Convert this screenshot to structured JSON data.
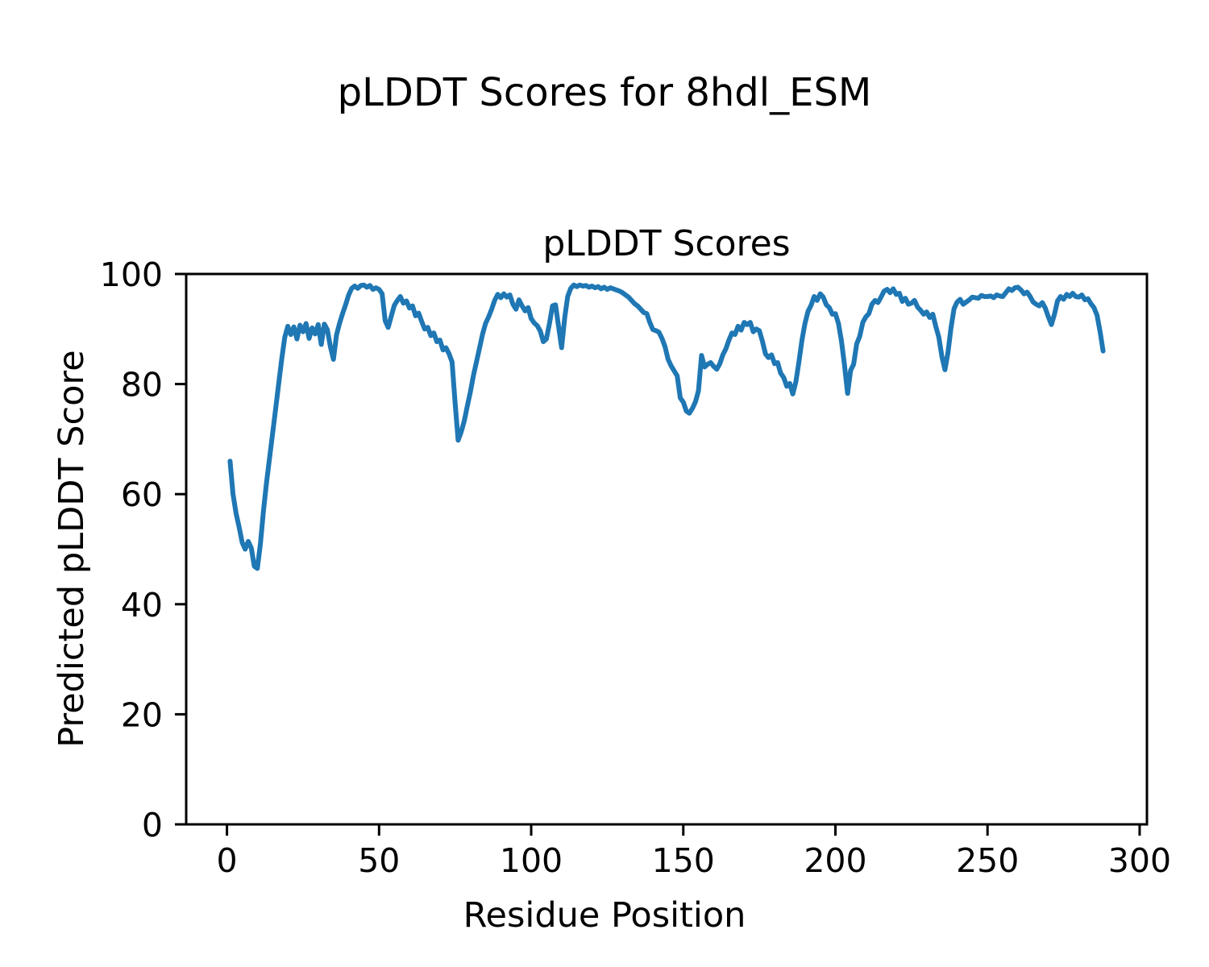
{
  "suptitle": "pLDDT Scores for 8hdl_ESM",
  "chart_data": {
    "type": "line",
    "title": "pLDDT Scores",
    "xlabel": "Residue Position",
    "ylabel": "Predicted pLDDT Score",
    "legend": "none",
    "grid": false,
    "line_color": "#1f77b4",
    "axis_color": "#000000",
    "background_color": "#ffffff",
    "xticks": [
      0,
      50,
      100,
      150,
      200,
      250,
      300
    ],
    "yticks": [
      0,
      20,
      40,
      60,
      80,
      100
    ],
    "xlim": [
      -13.4,
      302.4
    ],
    "ylim": [
      0,
      100
    ],
    "x_start": 1,
    "x_step": 1,
    "series_name": "pLDDT",
    "values": [
      66,
      60,
      56.5,
      54,
      51.2,
      50,
      51.4,
      50.2,
      46.9,
      46.5,
      51,
      57,
      62,
      66.5,
      71,
      75.5,
      80,
      84.5,
      88.5,
      90.5,
      89,
      90.4,
      88.2,
      90.7,
      89.5,
      91,
      88.3,
      90.2,
      89.1,
      90.8,
      87.2,
      90.9,
      89.9,
      86.8,
      84.5,
      88.9,
      91,
      92.8,
      94.4,
      96.2,
      97.4,
      97.8,
      97.4,
      97.9,
      98,
      97.6,
      97.9,
      97.2,
      97.5,
      97.2,
      96.4,
      91.5,
      90.3,
      92.3,
      94.3,
      95.2,
      95.9,
      94.7,
      95.1,
      93.8,
      94.2,
      92.4,
      92.9,
      91.4,
      90,
      90.3,
      88.8,
      89.3,
      87.7,
      88,
      86.2,
      86.6,
      85.5,
      84,
      76.5,
      69.8,
      71.3,
      73.3,
      76,
      78.5,
      81.5,
      84,
      86.5,
      89,
      91,
      92.2,
      93.6,
      95.2,
      96.3,
      95.7,
      96.4,
      95.8,
      96.2,
      94.5,
      93.6,
      95.3,
      94.2,
      93.3,
      93.9,
      91.9,
      91.1,
      90.6,
      89.6,
      87.7,
      88.2,
      91,
      94.2,
      94.4,
      90.5,
      86.6,
      92,
      95.9,
      97.4,
      98,
      97.7,
      98,
      97.8,
      97.9,
      97.6,
      97.8,
      97.5,
      97.7,
      97.3,
      97.6,
      97.2,
      97.5,
      97.3,
      97.1,
      96.9,
      96.6,
      96.2,
      95.8,
      95.2,
      94.6,
      94.2,
      93.6,
      93,
      92.8,
      91.2,
      89.9,
      89.7,
      89.4,
      88.3,
      86.8,
      84.5,
      83.3,
      82.4,
      81.5,
      77.5,
      76.7,
      75.1,
      74.7,
      75.6,
      76.8,
      78.8,
      85.2,
      83.1,
      83.6,
      83.9,
      83.2,
      82.7,
      83.7,
      85.3,
      86.4,
      88,
      89.3,
      89,
      90.5,
      89.8,
      91.2,
      90.8,
      91.2,
      89.5,
      90,
      89.7,
      87.8,
      85.5,
      84.8,
      85.3,
      83.7,
      83.9,
      82,
      81.2,
      79.6,
      80.1,
      78.2,
      80.4,
      84,
      88,
      91,
      93.2,
      94.3,
      95.9,
      95.2,
      96.4,
      95.8,
      94.4,
      93.9,
      92.7,
      92.8,
      91,
      87.8,
      83.4,
      78.3,
      82.5,
      83.6,
      87.3,
      88.7,
      91.2,
      92.2,
      92.8,
      94.5,
      95.2,
      94.8,
      95.8,
      96.9,
      97.2,
      96.6,
      97.3,
      96.3,
      96.5,
      95,
      95.6,
      94.5,
      94.7,
      95.2,
      94,
      93.4,
      92.7,
      93.1,
      92.1,
      92.7,
      90.5,
      88.5,
      85,
      82.6,
      85.7,
      90.2,
      93.7,
      94.9,
      95.4,
      94.5,
      94.9,
      95.3,
      95.8,
      95.7,
      95.6,
      96.1,
      95.9,
      95.9,
      96,
      95.7,
      96.2,
      96,
      95.9,
      96.6,
      97.3,
      97,
      97.5,
      97.6,
      97.1,
      96.4,
      96.7,
      95.9,
      94.9,
      94.5,
      94.2,
      94.8,
      93.8,
      92.2,
      90.8,
      92.7,
      95.1,
      95.9,
      95.4,
      96.3,
      95.9,
      96.5,
      95.9,
      95.8,
      96.2,
      95.3,
      95.5,
      94.6,
      93.9,
      92.5,
      89.5,
      86
    ]
  }
}
